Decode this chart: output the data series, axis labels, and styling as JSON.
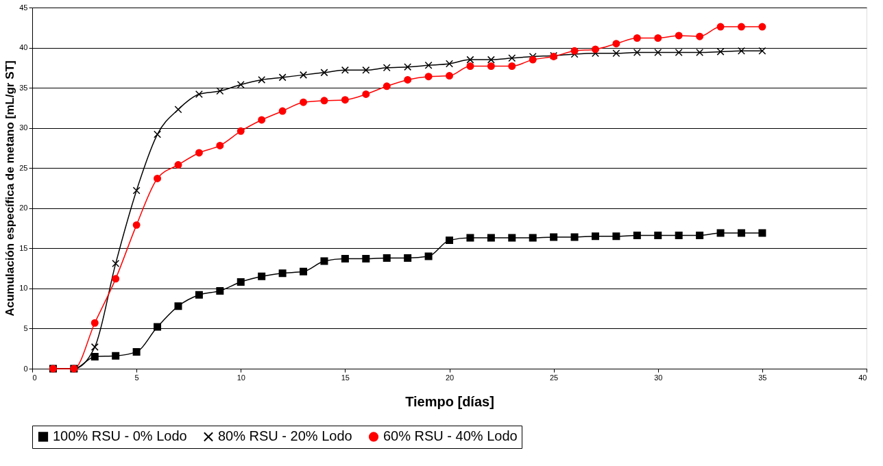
{
  "chart_data": {
    "type": "line",
    "xlabel": "Tiempo [días]",
    "ylabel": "Acumulación específica de metano [mL/gr ST]",
    "x": [
      1,
      2,
      3,
      4,
      5,
      6,
      7,
      8,
      9,
      10,
      11,
      12,
      13,
      14,
      15,
      16,
      17,
      18,
      19,
      20,
      21,
      22,
      23,
      24,
      25,
      26,
      27,
      28,
      29,
      30,
      31,
      32,
      33,
      34,
      35
    ],
    "series": [
      {
        "name": "100% RSU - 0% Lodo",
        "color": "#000000",
        "marker": "square",
        "values": [
          0,
          0,
          1.5,
          1.6,
          2.1,
          5.2,
          7.8,
          9.2,
          9.7,
          10.8,
          11.5,
          11.9,
          12.1,
          13.4,
          13.7,
          13.7,
          13.8,
          13.8,
          14.0,
          16.0,
          16.3,
          16.3,
          16.3,
          16.3,
          16.4,
          16.4,
          16.5,
          16.5,
          16.6,
          16.6,
          16.6,
          16.6,
          16.9,
          16.9,
          16.9
        ]
      },
      {
        "name": "80% RSU - 20% Lodo",
        "color": "#000000",
        "marker": "cross",
        "values": [
          0,
          0,
          2.7,
          13.1,
          22.2,
          29.2,
          32.3,
          34.2,
          34.6,
          35.4,
          36.0,
          36.3,
          36.6,
          36.9,
          37.2,
          37.2,
          37.5,
          37.6,
          37.8,
          38.0,
          38.5,
          38.5,
          38.7,
          38.9,
          39.0,
          39.2,
          39.3,
          39.3,
          39.4,
          39.4,
          39.4,
          39.4,
          39.5,
          39.6,
          39.6
        ]
      },
      {
        "name": "60% RSU - 40% Lodo",
        "color": "#ff0000",
        "marker": "circle",
        "values": [
          0,
          0,
          5.7,
          11.2,
          17.9,
          23.7,
          25.4,
          26.9,
          27.8,
          29.6,
          31.0,
          32.1,
          33.2,
          33.4,
          33.5,
          34.2,
          35.2,
          36.0,
          36.4,
          36.5,
          37.7,
          37.7,
          37.7,
          38.5,
          38.9,
          39.6,
          39.8,
          40.5,
          41.2,
          41.2,
          41.5,
          41.4,
          42.6,
          42.6,
          42.6
        ]
      }
    ],
    "xlim": [
      0,
      40
    ],
    "xticks": [
      0,
      5,
      10,
      15,
      20,
      25,
      30,
      35,
      40
    ],
    "ylim": [
      0,
      45
    ],
    "yticks": [
      0,
      5,
      10,
      15,
      20,
      25,
      30,
      35,
      40,
      45
    ],
    "grid": "y",
    "legend": "bottom",
    "line_style": "solid"
  }
}
